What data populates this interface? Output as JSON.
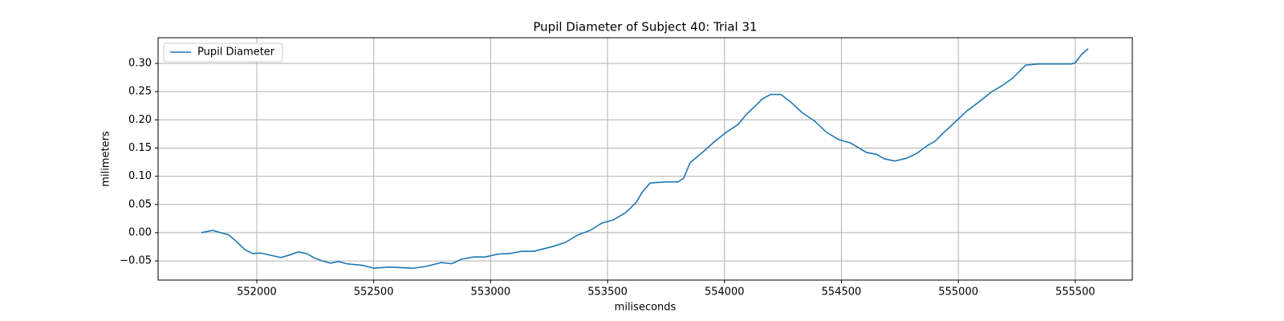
{
  "chart_data": {
    "type": "line",
    "title": "Pupil Diameter of Subject 40: Trial 31",
    "xlabel": "miliseconds",
    "ylabel": "milimeters",
    "x": [
      551763,
      551811,
      551846,
      551880,
      551914,
      551949,
      551983,
      552017,
      552069,
      552103,
      552137,
      552178,
      552213,
      552247,
      552281,
      552316,
      552350,
      552384,
      552453,
      552501,
      552566,
      552669,
      552721,
      552789,
      552834,
      552875,
      552927,
      552978,
      553030,
      553081,
      553133,
      553184,
      553270,
      553321,
      553373,
      553425,
      553476,
      553527,
      553579,
      553623,
      553647,
      553682,
      553750,
      553802,
      553826,
      553853,
      553905,
      553956,
      554008,
      554059,
      554094,
      554128,
      554162,
      554197,
      554241,
      554282,
      554334,
      554385,
      554436,
      554488,
      554539,
      554608,
      554649,
      554683,
      554728,
      554780,
      554824,
      554866,
      554900,
      554934,
      554986,
      555037,
      555089,
      555140,
      555185,
      555233,
      555288,
      555346,
      555483,
      555500,
      555527,
      555555
    ],
    "series": [
      {
        "name": "Pupil Diameter",
        "color": "#1f77b4",
        "values": [
          0.0,
          0.004,
          0.0,
          -0.004,
          -0.016,
          -0.03,
          -0.037,
          -0.036,
          -0.041,
          -0.044,
          -0.04,
          -0.034,
          -0.037,
          -0.045,
          -0.05,
          -0.054,
          -0.051,
          -0.055,
          -0.058,
          -0.063,
          -0.061,
          -0.063,
          -0.06,
          -0.053,
          -0.055,
          -0.047,
          -0.043,
          -0.043,
          -0.038,
          -0.037,
          -0.033,
          -0.033,
          -0.024,
          -0.017,
          -0.004,
          0.004,
          0.017,
          0.023,
          0.036,
          0.054,
          0.071,
          0.088,
          0.09,
          0.09,
          0.097,
          0.124,
          0.142,
          0.161,
          0.178,
          0.192,
          0.21,
          0.223,
          0.237,
          0.245,
          0.245,
          0.232,
          0.212,
          0.198,
          0.178,
          0.165,
          0.159,
          0.142,
          0.139,
          0.131,
          0.127,
          0.132,
          0.141,
          0.154,
          0.162,
          0.176,
          0.196,
          0.216,
          0.232,
          0.249,
          0.26,
          0.274,
          0.297,
          0.299,
          0.299,
          0.301,
          0.316,
          0.326
        ]
      }
    ],
    "xlim": [
      551578,
      555744
    ],
    "ylim": [
      -0.084,
      0.3455
    ],
    "xticks": [
      552000,
      552500,
      553000,
      553500,
      554000,
      554500,
      555000,
      555500
    ],
    "yticks": [
      {
        "value": -0.05,
        "label": "−0.05"
      },
      {
        "value": 0,
        "label": "0.00"
      },
      0.05,
      {
        "value": 0.1,
        "label": "0.10"
      },
      0.15,
      {
        "value": 0.2,
        "label": "0.20"
      },
      0.25,
      {
        "value": 0.3,
        "label": "0.30"
      }
    ],
    "grid": true,
    "legend": "upper left"
  }
}
